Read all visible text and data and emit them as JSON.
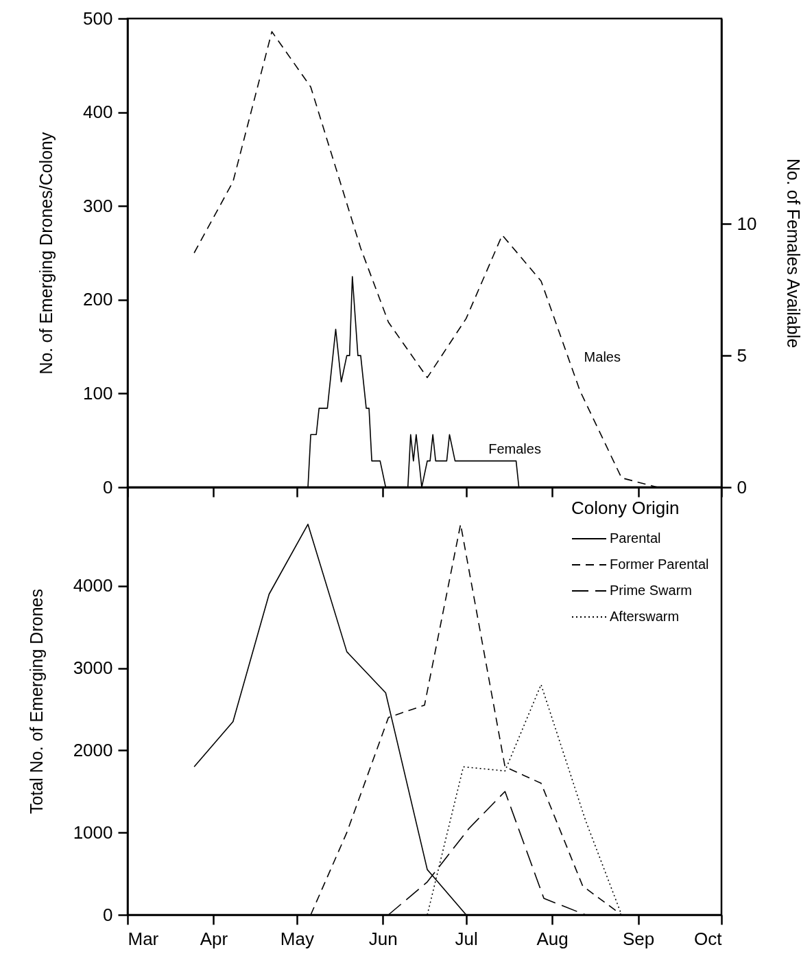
{
  "chart_data": [
    {
      "type": "line",
      "xlim": [
        "--03-01",
        "--10-01"
      ],
      "xticks": [
        {
          "value": "--03-01",
          "label": null
        },
        {
          "value": "--04-01",
          "label": null
        },
        {
          "value": "--05-01",
          "label": null
        },
        {
          "value": "--06-01",
          "label": null
        },
        {
          "value": "--07-01",
          "label": null
        },
        {
          "value": "--08-01",
          "label": null
        },
        {
          "value": "--09-01",
          "label": null
        },
        {
          "value": "--10-01",
          "label": null
        }
      ],
      "ylim": [
        0,
        500
      ],
      "yticks": [
        0,
        100,
        200,
        300,
        400,
        500
      ],
      "y2lim": [
        0,
        17.8
      ],
      "y2ticks": [
        0,
        5,
        10
      ],
      "ylabel": "No. of Emerging Drones/Colony",
      "y2label": "No. of Females Available",
      "tick_labels": "y",
      "grid": false,
      "legend": false,
      "series": [
        {
          "name": "Males",
          "color": "#000000",
          "line_style": "dashed",
          "x": [
            "--03-25",
            "--04-08",
            "--04-22",
            "--05-06",
            "--05-24",
            "--06-03",
            "--06-17",
            "--07-01",
            "--07-14",
            "--07-28",
            "--08-11",
            "--08-26",
            "--09-08"
          ],
          "values": [
            250,
            326,
            486,
            427,
            255,
            176,
            117,
            180,
            269,
            220,
            103,
            10,
            0
          ]
        },
        {
          "name": "Females",
          "color": "#000000",
          "line_style": "solid",
          "axis": "y2",
          "x": [
            "--05-05",
            "--05-06",
            "--05-08",
            "--05-09",
            "--05-12",
            "--05-15",
            "--05-17",
            "--05-19",
            "--05-20",
            "--05-21",
            "--05-23",
            "--05-24",
            "--05-26",
            "--05-27",
            "--05-28",
            "--05-31",
            "--06-02",
            "--06-10",
            "--06-11",
            "--06-12",
            "--06-13",
            "--06-15",
            "--06-17",
            "--06-18",
            "--06-19",
            "--06-20",
            "--06-24",
            "--06-25",
            "--06-27",
            "--07-19",
            "--07-20"
          ],
          "values": [
            0,
            2,
            2,
            3,
            3,
            6,
            4,
            5,
            5,
            8,
            5,
            5,
            3,
            3,
            1,
            1,
            0,
            0,
            2,
            1,
            2,
            0,
            1,
            1,
            2,
            1,
            1,
            2,
            1,
            1,
            0
          ]
        }
      ]
    },
    {
      "type": "line",
      "xlim": [
        "--03-01",
        "--10-01"
      ],
      "xticks": [
        {
          "value": "--03-01",
          "label": "Mar"
        },
        {
          "value": "--04-01",
          "label": "Apr"
        },
        {
          "value": "--05-01",
          "label": "May"
        },
        {
          "value": "--06-01",
          "label": "Jun"
        },
        {
          "value": "--07-01",
          "label": "Jul"
        },
        {
          "value": "--08-01",
          "label": "Aug"
        },
        {
          "value": "--09-01",
          "label": "Sep"
        },
        {
          "value": "--10-01",
          "label": "Oct"
        }
      ],
      "ylim": [
        0,
        5200
      ],
      "yticks": [
        0,
        1000,
        2000,
        3000,
        4000
      ],
      "ylabel": "Total No. of Emerging Drones",
      "legend_title": "Colony Origin",
      "legend": "top right",
      "grid": false,
      "series": [
        {
          "name": "Parental",
          "color": "#000000",
          "line_style": "solid",
          "x": [
            "--03-25",
            "--04-08",
            "--04-21",
            "--05-05",
            "--05-19",
            "--06-02",
            "--06-17",
            "--07-01"
          ],
          "values": [
            1800,
            2350,
            3900,
            4750,
            3200,
            2700,
            550,
            0
          ]
        },
        {
          "name": "Former Parental",
          "color": "#000000",
          "line_style": "dashed",
          "x": [
            "--05-06",
            "--05-19",
            "--06-03",
            "--06-16",
            "--06-29",
            "--07-15",
            "--07-28",
            "--08-12",
            "--08-26"
          ],
          "values": [
            0,
            1000,
            2400,
            2550,
            4750,
            1800,
            1600,
            350,
            0
          ]
        },
        {
          "name": "Prime Swarm",
          "color": "#000000",
          "line_style": "dashed",
          "x": [
            "--06-03",
            "--06-17",
            "--07-02",
            "--07-15",
            "--07-29",
            "--08-13"
          ],
          "values": [
            0,
            400,
            1050,
            1500,
            200,
            0
          ]
        },
        {
          "name": "Afterswarm",
          "color": "#000000",
          "line_style": "dotted",
          "x": [
            "--06-17",
            "--06-30",
            "--07-15",
            "--07-28",
            "--08-13",
            "--08-26"
          ],
          "values": [
            0,
            1800,
            1750,
            2800,
            1150,
            0
          ]
        }
      ]
    }
  ]
}
